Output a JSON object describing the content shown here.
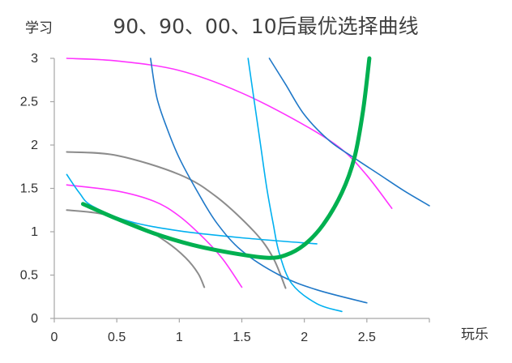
{
  "chart_data": {
    "type": "line",
    "title": "90、90、00、10后最优选择曲线",
    "xlabel": "玩乐",
    "ylabel": "学习",
    "xlim": [
      0,
      3
    ],
    "ylim": [
      0,
      3
    ],
    "x_ticks": [
      "0",
      "0.5",
      "1",
      "1.5",
      "2",
      "2.5"
    ],
    "y_ticks": [
      "0",
      "0.5",
      "1",
      "1.5",
      "2",
      "2.5",
      "3"
    ],
    "grid": false,
    "legend": "none",
    "colors": {
      "magenta": "#ff33ff",
      "gray": "#8c8c8c",
      "blue": "#1f78c8",
      "cyan": "#00b0f0",
      "green": "#00b050",
      "axis": "#a6a6a6"
    },
    "series": [
      {
        "color": "magenta",
        "width": 1.6,
        "points": [
          [
            0.1,
            3.0
          ],
          [
            0.5,
            2.97
          ],
          [
            1.0,
            2.86
          ],
          [
            1.5,
            2.6
          ],
          [
            2.0,
            2.23
          ],
          [
            2.3,
            1.95
          ],
          [
            2.5,
            1.65
          ],
          [
            2.7,
            1.27
          ]
        ]
      },
      {
        "color": "gray",
        "width": 2.0,
        "points": [
          [
            0.1,
            1.92
          ],
          [
            0.5,
            1.88
          ],
          [
            1.0,
            1.66
          ],
          [
            1.3,
            1.4
          ],
          [
            1.6,
            1.0
          ],
          [
            1.75,
            0.7
          ],
          [
            1.85,
            0.35
          ]
        ]
      },
      {
        "color": "magenta",
        "width": 1.6,
        "points": [
          [
            0.1,
            1.54
          ],
          [
            0.5,
            1.47
          ],
          [
            0.8,
            1.35
          ],
          [
            1.0,
            1.18
          ],
          [
            1.2,
            0.92
          ],
          [
            1.35,
            0.68
          ],
          [
            1.5,
            0.36
          ]
        ]
      },
      {
        "color": "gray",
        "width": 2.0,
        "points": [
          [
            0.1,
            1.25
          ],
          [
            0.4,
            1.2
          ],
          [
            0.7,
            1.05
          ],
          [
            0.9,
            0.88
          ],
          [
            1.05,
            0.7
          ],
          [
            1.15,
            0.52
          ],
          [
            1.2,
            0.36
          ]
        ]
      },
      {
        "color": "cyan",
        "width": 1.6,
        "points": [
          [
            0.1,
            1.66
          ],
          [
            0.2,
            1.45
          ],
          [
            0.3,
            1.3
          ],
          [
            0.6,
            1.12
          ],
          [
            1.0,
            1.01
          ],
          [
            1.5,
            0.93
          ],
          [
            2.1,
            0.86
          ]
        ]
      },
      {
        "color": "blue",
        "width": 1.6,
        "points": [
          [
            0.77,
            3.0
          ],
          [
            0.82,
            2.55
          ],
          [
            0.9,
            2.2
          ],
          [
            1.0,
            1.85
          ],
          [
            1.15,
            1.45
          ],
          [
            1.3,
            1.1
          ],
          [
            1.5,
            0.78
          ],
          [
            1.8,
            0.5
          ],
          [
            2.1,
            0.33
          ],
          [
            2.5,
            0.18
          ]
        ]
      },
      {
        "color": "cyan",
        "width": 1.6,
        "points": [
          [
            1.55,
            3.0
          ],
          [
            1.6,
            2.5
          ],
          [
            1.65,
            2.0
          ],
          [
            1.7,
            1.5
          ],
          [
            1.75,
            1.1
          ],
          [
            1.8,
            0.75
          ],
          [
            1.9,
            0.4
          ],
          [
            2.1,
            0.17
          ],
          [
            2.3,
            0.08
          ]
        ]
      },
      {
        "color": "blue",
        "width": 1.6,
        "points": [
          [
            1.72,
            3.0
          ],
          [
            1.85,
            2.7
          ],
          [
            2.0,
            2.35
          ],
          [
            2.2,
            2.05
          ],
          [
            2.4,
            1.85
          ],
          [
            2.6,
            1.66
          ],
          [
            2.8,
            1.47
          ],
          [
            3.0,
            1.3
          ]
        ]
      },
      {
        "color": "green",
        "width": 5.0,
        "points": [
          [
            0.23,
            1.32
          ],
          [
            0.5,
            1.15
          ],
          [
            0.8,
            0.98
          ],
          [
            1.1,
            0.85
          ],
          [
            1.4,
            0.76
          ],
          [
            1.7,
            0.7
          ],
          [
            1.85,
            0.73
          ],
          [
            2.0,
            0.85
          ],
          [
            2.15,
            1.08
          ],
          [
            2.3,
            1.45
          ],
          [
            2.4,
            1.85
          ],
          [
            2.47,
            2.4
          ],
          [
            2.52,
            3.0
          ]
        ]
      }
    ]
  }
}
